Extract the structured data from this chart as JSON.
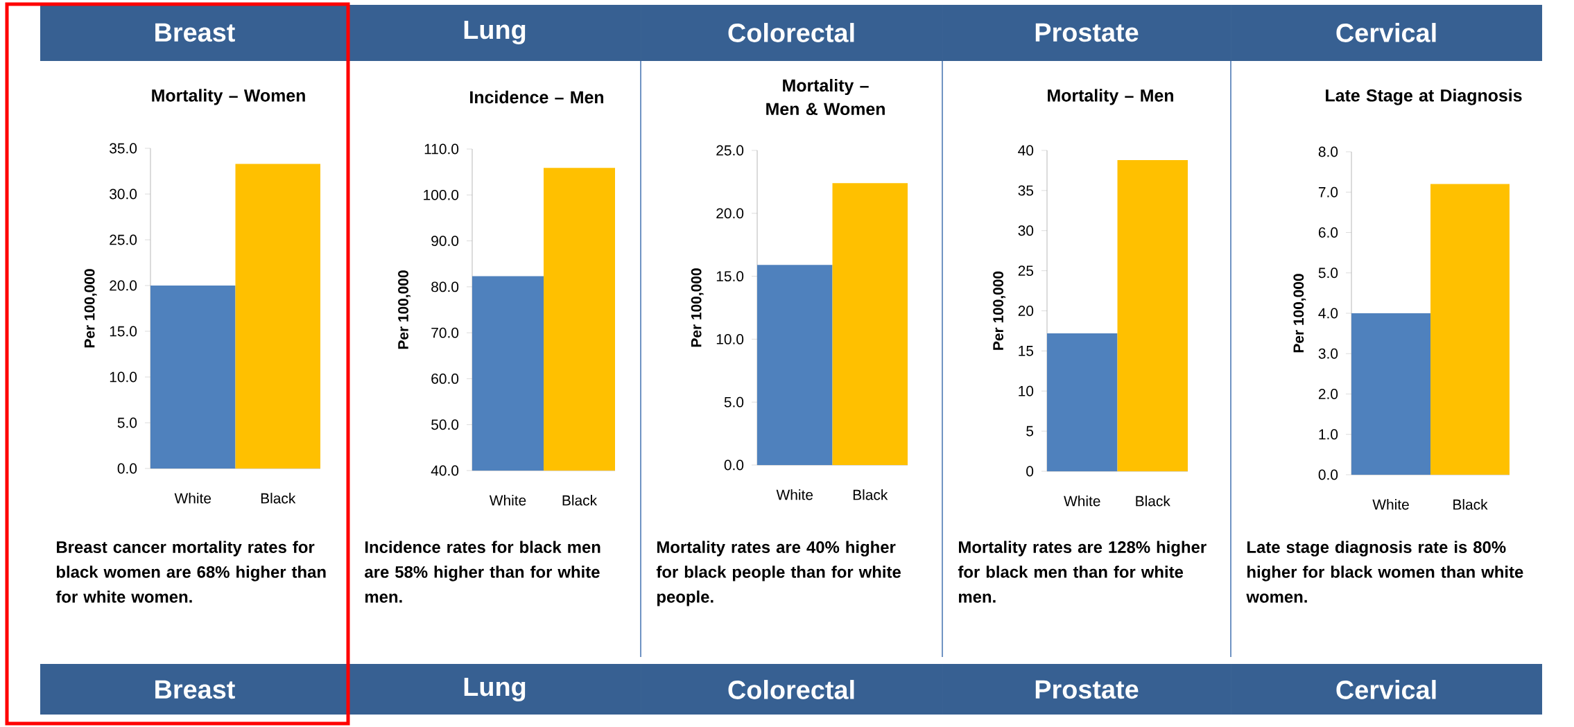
{
  "chart_data": [
    {
      "type": "bar",
      "title": "Breast",
      "subtitle": "Mortality – Women",
      "ylabel": "Per 100,000",
      "categories": [
        "White",
        "Black"
      ],
      "values": [
        20.0,
        33.3
      ],
      "colors": [
        "#4f81bd",
        "#ffc000"
      ],
      "ylim": [
        0,
        35
      ],
      "yticks": [
        {
          "value": 0,
          "label": "0.0"
        },
        {
          "value": 5,
          "label": "5.0"
        },
        {
          "value": 10,
          "label": "10.0"
        },
        {
          "value": 15,
          "label": "15.0"
        },
        {
          "value": 20,
          "label": "20.0"
        },
        {
          "value": 25,
          "label": "25.0"
        },
        {
          "value": 30,
          "label": "30.0"
        },
        {
          "value": 35,
          "label": "35.0"
        }
      ],
      "annotations": [
        "Breast cancer mortality rates for black women are 68% higher than for white women.",
        "Breast"
      ]
    },
    {
      "type": "bar",
      "title": "Lung",
      "subtitle": "Incidence – Men",
      "ylabel": "Per 100,000",
      "categories": [
        "White",
        "Black"
      ],
      "values": [
        82.3,
        105.9
      ],
      "colors": [
        "#4f81bd",
        "#ffc000"
      ],
      "ylim": [
        40,
        110
      ],
      "yticks": [
        {
          "value": 40,
          "label": "40.0"
        },
        {
          "value": 50,
          "label": "50.0"
        },
        {
          "value": 60,
          "label": "60.0"
        },
        {
          "value": 70,
          "label": "70.0"
        },
        {
          "value": 80,
          "label": "80.0"
        },
        {
          "value": 90,
          "label": "90.0"
        },
        {
          "value": 100,
          "label": "100.0"
        },
        {
          "value": 110,
          "label": "110.0"
        }
      ],
      "annotations": [
        "Incidence rates for black men are 58% higher than for white men.",
        "Lung"
      ]
    },
    {
      "type": "bar",
      "title": "Colorectal",
      "subtitle": "Mortality – Men & Women",
      "ylabel": "Per 100,000",
      "categories": [
        "White",
        "Black"
      ],
      "values": [
        15.9,
        22.4
      ],
      "colors": [
        "#4f81bd",
        "#ffc000"
      ],
      "ylim": [
        0,
        25
      ],
      "yticks": [
        {
          "value": 0,
          "label": "0.0"
        },
        {
          "value": 5,
          "label": "5.0"
        },
        {
          "value": 10,
          "label": "10.0"
        },
        {
          "value": 15,
          "label": "15.0"
        },
        {
          "value": 20,
          "label": "20.0"
        },
        {
          "value": 25,
          "label": "25.0"
        }
      ],
      "annotations": [
        "Mortality rates are 40% higher for black people than for white people.",
        "Colorectal"
      ]
    },
    {
      "type": "bar",
      "title": "Prostate",
      "subtitle": "Mortality – Men",
      "ylabel": "Per 100,000",
      "categories": [
        "White",
        "Black"
      ],
      "values": [
        17.2,
        38.8
      ],
      "colors": [
        "#4f81bd",
        "#ffc000"
      ],
      "ylim": [
        0,
        40
      ],
      "yticks": [
        0,
        5,
        10,
        15,
        20,
        25,
        30,
        35,
        40
      ],
      "annotations": [
        "Mortality rates are 128% higher for black men than for white men.",
        "Prostate"
      ]
    },
    {
      "type": "bar",
      "title": "Cervical",
      "subtitle": "Late Stage at Diagnosis",
      "ylabel": "Per 100,000",
      "categories": [
        "White",
        "Black"
      ],
      "values": [
        4.0,
        7.2
      ],
      "colors": [
        "#4f81bd",
        "#ffc000"
      ],
      "ylim": [
        0,
        8
      ],
      "yticks": [
        {
          "value": 0,
          "label": "0.0"
        },
        {
          "value": 1,
          "label": "1.0"
        },
        {
          "value": 2,
          "label": "2.0"
        },
        {
          "value": 3,
          "label": "3.0"
        },
        {
          "value": 4,
          "label": "4.0"
        },
        {
          "value": 5,
          "label": "5.0"
        },
        {
          "value": 6,
          "label": "6.0"
        },
        {
          "value": 7,
          "label": "7.0"
        },
        {
          "value": 8,
          "label": "8.0"
        }
      ],
      "annotations": [
        "Late stage diagnosis rate is 80% higher for black women than white women.",
        "Cervical"
      ]
    }
  ]
}
